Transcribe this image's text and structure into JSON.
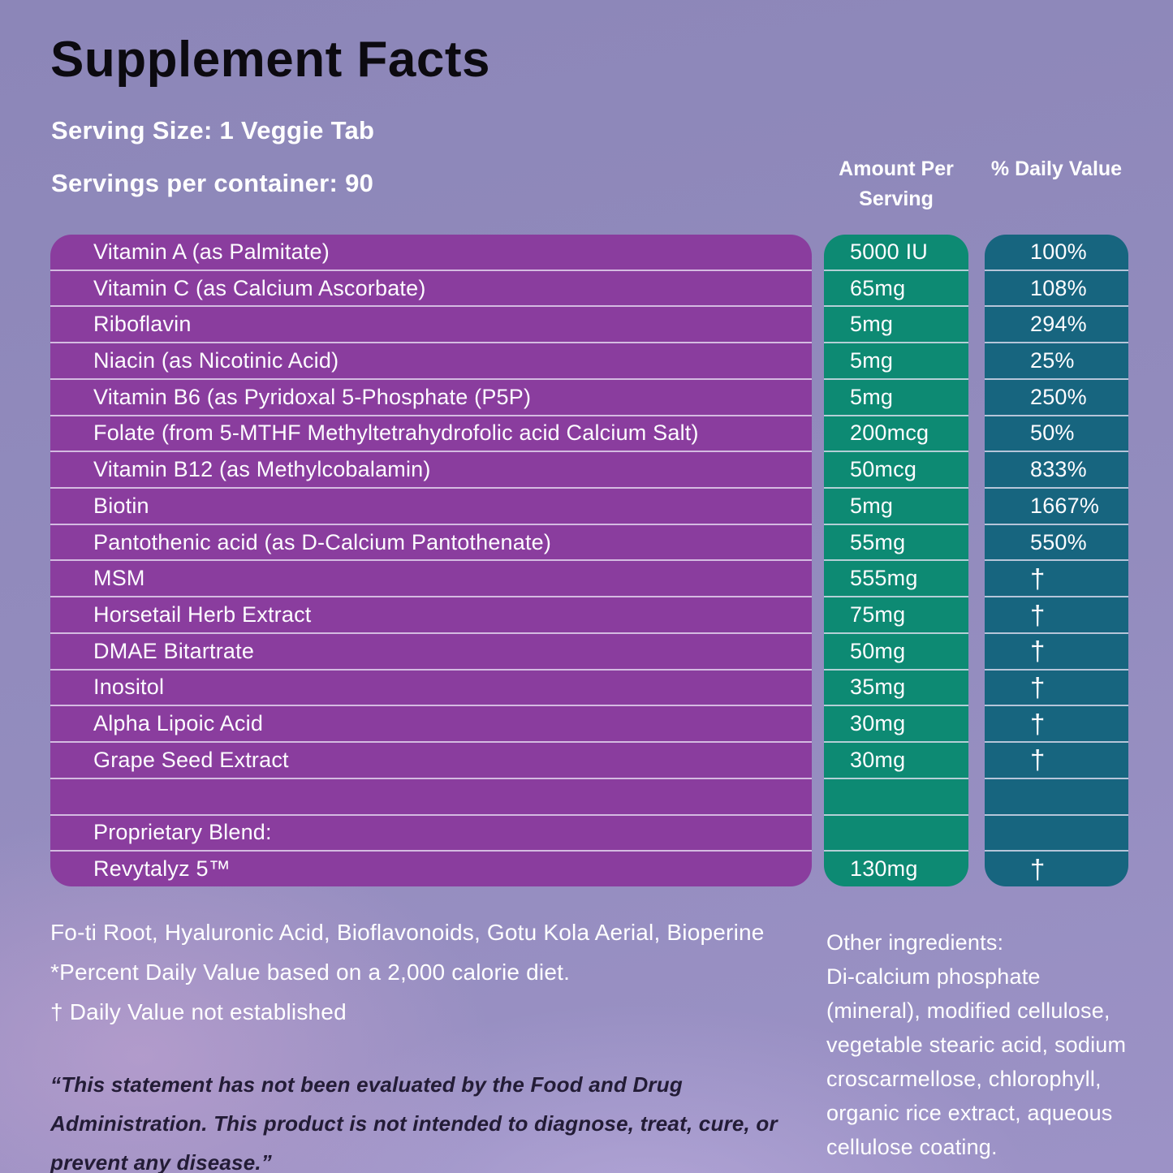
{
  "title": "Supplement Facts",
  "serving": {
    "size": "Serving Size: 1 Veggie Tab",
    "per_container": "Servings per container: 90"
  },
  "headers": {
    "amount": "Amount Per Serving",
    "daily_value": "% Daily Value"
  },
  "table": {
    "rows": [
      {
        "name": "Vitamin A (as Palmitate)",
        "amount": "5000 IU",
        "dv": "100%"
      },
      {
        "name": "Vitamin C (as Calcium Ascorbate)",
        "amount": "65mg",
        "dv": "108%"
      },
      {
        "name": "Riboflavin",
        "amount": "5mg",
        "dv": "294%"
      },
      {
        "name": "Niacin (as Nicotinic Acid)",
        "amount": "5mg",
        "dv": "25%"
      },
      {
        "name": "Vitamin B6 (as Pyridoxal 5-Phosphate (P5P)",
        "amount": "5mg",
        "dv": "250%"
      },
      {
        "name": "Folate (from 5-MTHF Methyltetrahydrofolic acid Calcium Salt)",
        "amount": "200mcg",
        "dv": "50%"
      },
      {
        "name": "Vitamin B12 (as Methylcobalamin)",
        "amount": "50mcg",
        "dv": "833%"
      },
      {
        "name": "Biotin",
        "amount": "5mg",
        "dv": "1667%"
      },
      {
        "name": "Pantothenic acid (as D-Calcium Pantothenate)",
        "amount": "55mg",
        "dv": "550%"
      },
      {
        "name": "MSM",
        "amount": "555mg",
        "dv": "†"
      },
      {
        "name": "Horsetail Herb Extract",
        "amount": "75mg",
        "dv": "†"
      },
      {
        "name": "DMAE Bitartrate",
        "amount": "50mg",
        "dv": "†"
      },
      {
        "name": "Inositol",
        "amount": "35mg",
        "dv": "†"
      },
      {
        "name": "Alpha Lipoic Acid",
        "amount": "30mg",
        "dv": "†"
      },
      {
        "name": "Grape Seed Extract",
        "amount": "30mg",
        "dv": "†"
      },
      {
        "name": "",
        "amount": "",
        "dv": ""
      },
      {
        "name": "Proprietary Blend:",
        "amount": "",
        "dv": ""
      },
      {
        "name": "Revytalyz 5™",
        "amount": "130mg",
        "dv": "†"
      }
    ]
  },
  "footnotes": {
    "blend_contents": "Fo-ti Root, Hyaluronic Acid, Bioflavonoids, Gotu Kola Aerial, Bioperine",
    "percent_dv": "*Percent Daily Value based on a 2,000 calorie diet.",
    "dagger_note": "† Daily Value not established"
  },
  "other_ingredients": {
    "heading": "Other ingredients:",
    "body": "Di-calcium phosphate (mineral), modified cellulose, vegetable stearic acid, sodium croscarmellose, chlorophyll, organic rice extract, aqueous cellulose coating."
  },
  "disclaimer": "“This statement has not been evaluated by the Food and Drug Administration. This product is not intended to diagnose, treat, cure, or prevent any disease.”",
  "colors": {
    "ingredient_column": "#8a3d9e",
    "amount_column": "#0d8a73",
    "daily_value_column": "#17657f",
    "background": "#938cbe",
    "title_text": "#0c0a10",
    "body_text": "#ffffff",
    "disclaimer_text": "#231c36"
  }
}
